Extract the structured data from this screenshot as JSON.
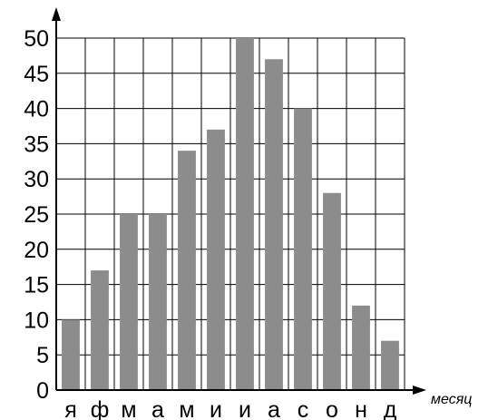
{
  "chart_data": {
    "type": "bar",
    "title": "",
    "xlabel": "месяц",
    "ylabel": "",
    "categories": [
      "я",
      "ф",
      "м",
      "а",
      "м",
      "и",
      "и",
      "а",
      "с",
      "о",
      "н",
      "д"
    ],
    "values": [
      10,
      17,
      25,
      25,
      34,
      37,
      50,
      47,
      40,
      28,
      12,
      7
    ],
    "ylim": [
      0,
      50
    ],
    "yticks": [
      "0",
      "5",
      "10",
      "15",
      "20",
      "25",
      "30",
      "35",
      "40",
      "45",
      "50"
    ],
    "grid": true,
    "bar_color": "#8c8c8c",
    "legend": "none"
  }
}
